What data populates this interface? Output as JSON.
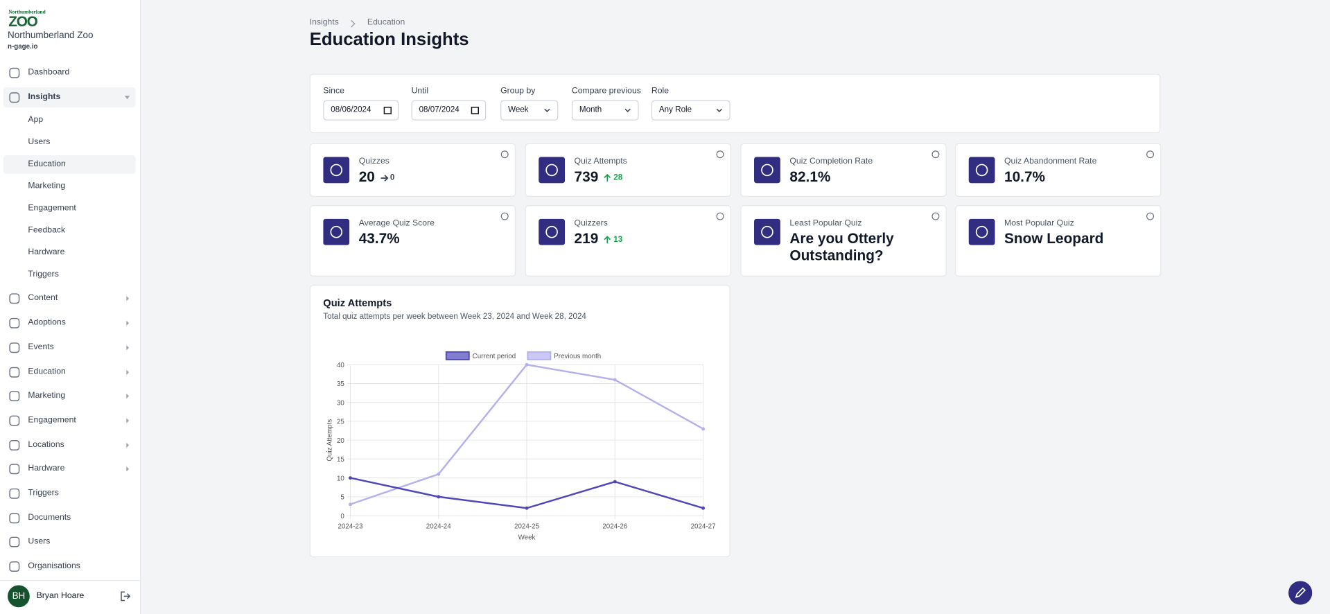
{
  "sidebar": {
    "logo": [
      "Northumberland",
      "ZOO"
    ],
    "org_name": "Northumberland Zoo",
    "domain": "n-gage.io",
    "nav": [
      {
        "label": "Dashboard"
      },
      {
        "label": "Insights",
        "expanded": true,
        "children": [
          "App",
          "Users",
          "Education",
          "Marketing",
          "Engagement",
          "Feedback",
          "Hardware",
          "Triggers"
        ],
        "active_child": 2
      },
      {
        "label": "Content",
        "expanded": false
      },
      {
        "label": "Adoptions",
        "expanded": false
      },
      {
        "label": "Events",
        "expanded": false
      },
      {
        "label": "Education",
        "expanded": false
      },
      {
        "label": "Marketing",
        "expanded": false
      },
      {
        "label": "Engagement",
        "expanded": false
      },
      {
        "label": "Locations",
        "expanded": false
      },
      {
        "label": "Hardware",
        "expanded": false
      },
      {
        "label": "Triggers"
      },
      {
        "label": "Documents"
      },
      {
        "label": "Users"
      },
      {
        "label": "Organisations"
      }
    ],
    "user": {
      "initials": "BH",
      "name": "Bryan Hoare"
    }
  },
  "breadcrumb": [
    "Insights",
    "Education"
  ],
  "title": "Education Insights",
  "filters": [
    {
      "label": "Since",
      "value": "08/06/2024",
      "kind": "date"
    },
    {
      "label": "Until",
      "value": "08/07/2024",
      "kind": "date"
    },
    {
      "label": "Group by",
      "value": "Week",
      "kind": "select"
    },
    {
      "label": "Compare previous",
      "value": "Month",
      "kind": "select"
    },
    {
      "label": "Role",
      "value": "Any Role",
      "kind": "select"
    }
  ],
  "stats": [
    {
      "label": "Quizzes",
      "value": "20",
      "change": "0",
      "trend": "flat"
    },
    {
      "label": "Quiz Attempts",
      "value": "739",
      "change": "28",
      "trend": "up"
    },
    {
      "label": "Quiz Completion Rate",
      "value": "82.1%"
    },
    {
      "label": "Quiz Abandonment Rate",
      "value": "10.7%"
    },
    {
      "label": "Average Quiz Score",
      "value": "43.7%"
    },
    {
      "label": "Quizzers",
      "value": "219",
      "change": "13",
      "trend": "up"
    },
    {
      "label": "Least Popular Quiz",
      "value": "Are you Otterly Outstanding?"
    },
    {
      "label": "Most Popular Quiz",
      "value": "Snow Leopard"
    }
  ],
  "chart_data": {
    "type": "line",
    "title": "Quiz Attempts",
    "subtitle": "Total quiz attempts per week between Week 23, 2024 and Week 28, 2024",
    "categories": [
      "2024-23",
      "2024-24",
      "2024-25",
      "2024-26",
      "2024-27"
    ],
    "series": [
      {
        "name": "Current period",
        "color": "#4f46b8",
        "values": [
          10,
          5,
          2,
          9,
          2
        ]
      },
      {
        "name": "Previous month",
        "color": "#b4b0ec",
        "values": [
          3,
          11,
          40,
          36,
          23
        ]
      }
    ],
    "ylim": [
      0,
      40
    ],
    "yticks": [
      0,
      5,
      10,
      15,
      20,
      25,
      30,
      35,
      40
    ],
    "x_label": "Week",
    "y_label": "Quiz Attempts",
    "grid": true,
    "legend": "top"
  }
}
